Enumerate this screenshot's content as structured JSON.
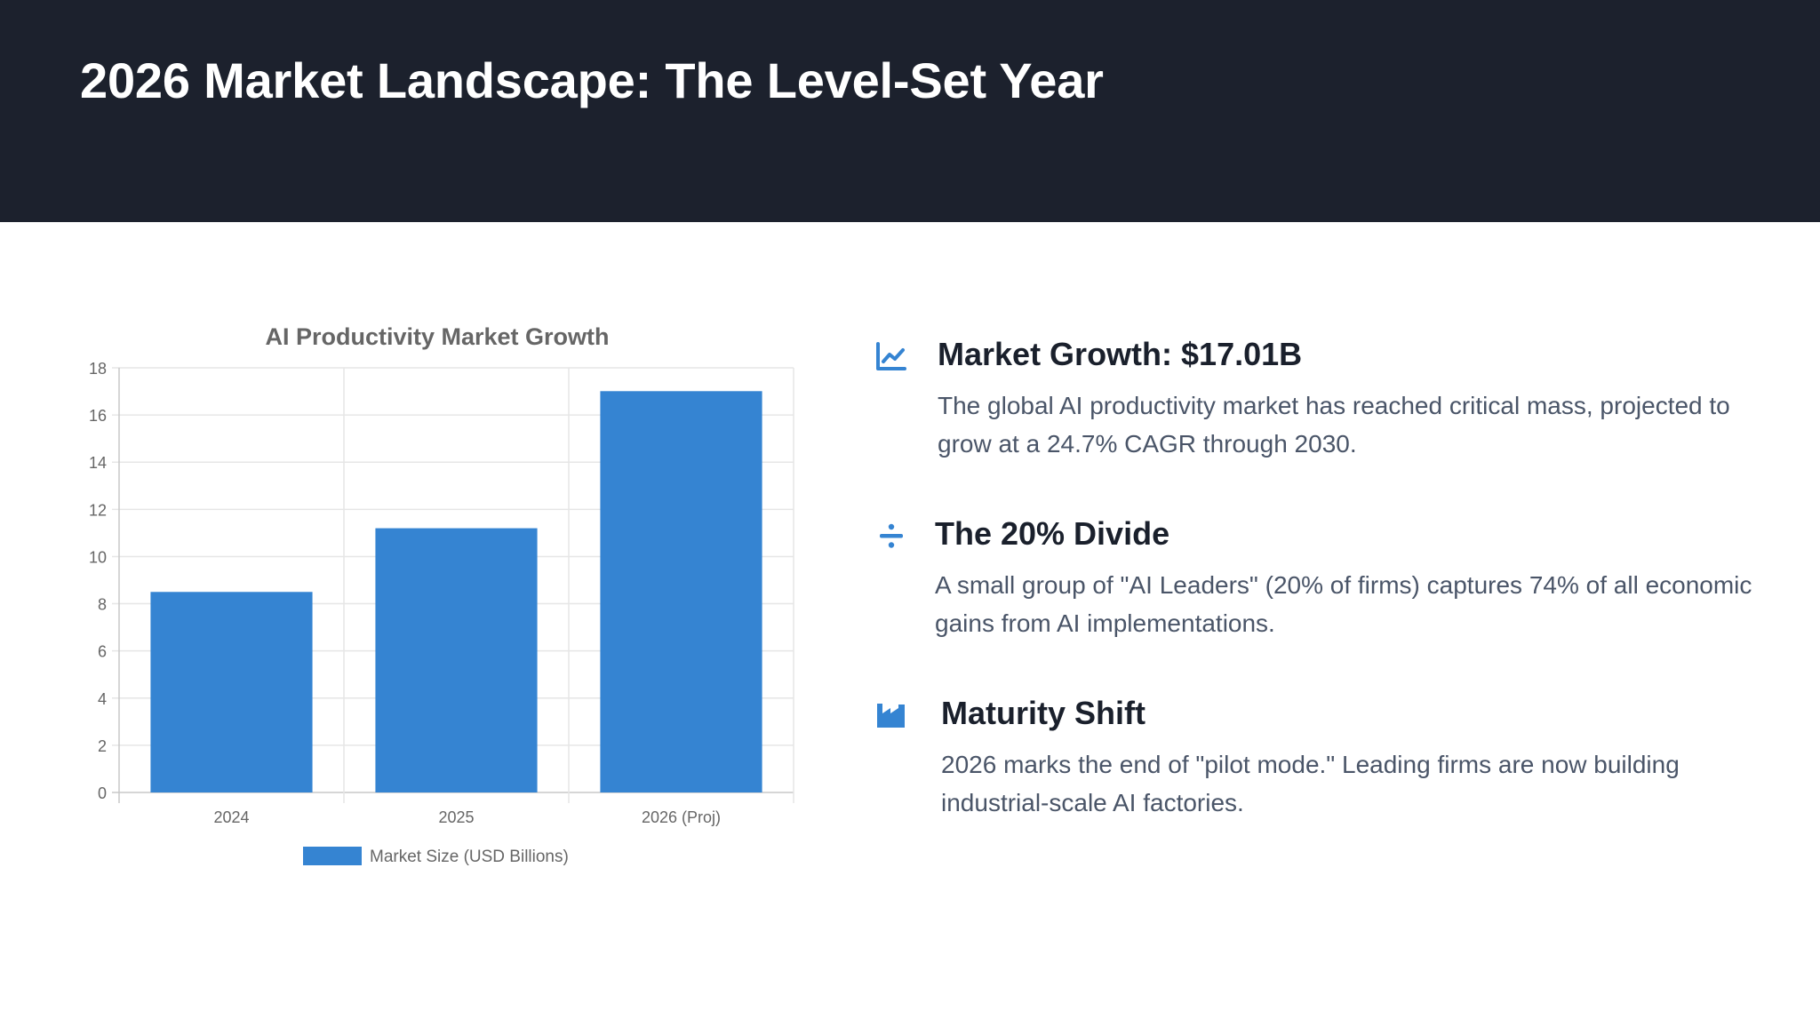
{
  "header": {
    "title": "2026 Market Landscape: The Level-Set Year"
  },
  "colors": {
    "header_bg": "#1c212d",
    "bar": "#3584d2",
    "icon": "#3584d2"
  },
  "chart_data": {
    "type": "bar",
    "title": "AI Productivity Market Growth",
    "categories": [
      "2024",
      "2025",
      "2026 (Proj)"
    ],
    "series": [
      {
        "name": "Market Size (USD Billions)",
        "values": [
          8.5,
          11.2,
          17.01
        ]
      }
    ],
    "ylim": [
      0,
      18
    ],
    "yticks": [
      0,
      2,
      4,
      6,
      8,
      10,
      12,
      14,
      16,
      18
    ],
    "grid": true,
    "legend": "bottom"
  },
  "insights": [
    {
      "icon": "chart-line-icon",
      "title": "Market Growth: $17.01B",
      "body": "The global AI productivity market has reached critical mass, projected to grow at a 24.7% CAGR through 2030."
    },
    {
      "icon": "divide-icon",
      "title": "The 20% Divide",
      "body": "A small group of \"AI Leaders\" (20% of firms) captures 74% of all economic gains from AI implementations."
    },
    {
      "icon": "industry-icon",
      "title": "Maturity Shift",
      "body": "2026 marks the end of \"pilot mode.\" Leading firms are now building industrial-scale AI factories."
    }
  ]
}
